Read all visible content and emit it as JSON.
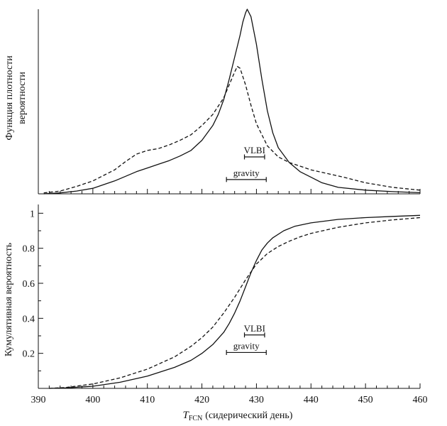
{
  "colors": {
    "ink": "#111111",
    "background": "#ffffff"
  },
  "chart_data": [
    {
      "type": "line",
      "panel": "top",
      "title": "",
      "xlabel": "",
      "ylabel_lines": [
        "Функция плотности",
        "вероятности"
      ],
      "xlim": [
        390,
        460
      ],
      "ylim": [
        0,
        1.0
      ],
      "y_ticks_visible": false,
      "series": [
        {
          "style": "solid",
          "x": [
            391,
            394,
            397,
            400,
            402,
            404,
            406,
            408,
            410,
            412,
            414,
            416,
            418,
            420,
            422,
            423,
            424,
            425,
            426,
            427,
            427.5,
            428,
            428.3,
            429,
            430,
            431,
            432,
            433,
            434,
            436,
            438,
            440,
            442,
            445,
            450,
            455,
            460
          ],
          "y": [
            0.0,
            0.005,
            0.015,
            0.03,
            0.05,
            0.07,
            0.095,
            0.12,
            0.14,
            0.16,
            0.18,
            0.205,
            0.235,
            0.29,
            0.37,
            0.43,
            0.51,
            0.62,
            0.74,
            0.86,
            0.93,
            0.98,
            1.0,
            0.96,
            0.81,
            0.62,
            0.45,
            0.33,
            0.25,
            0.17,
            0.12,
            0.09,
            0.06,
            0.035,
            0.02,
            0.012,
            0.006
          ]
        },
        {
          "style": "dashed",
          "x": [
            391,
            394,
            397,
            400,
            402,
            404,
            406,
            408,
            410,
            412,
            414,
            416,
            418,
            420,
            422,
            424,
            425,
            426,
            426.5,
            427,
            428,
            429,
            430,
            432,
            434,
            436,
            438,
            440,
            443,
            446,
            450,
            455,
            460
          ],
          "y": [
            0.005,
            0.015,
            0.04,
            0.07,
            0.1,
            0.13,
            0.175,
            0.215,
            0.235,
            0.245,
            0.265,
            0.29,
            0.32,
            0.37,
            0.43,
            0.52,
            0.59,
            0.66,
            0.69,
            0.68,
            0.59,
            0.48,
            0.38,
            0.26,
            0.2,
            0.17,
            0.15,
            0.13,
            0.11,
            0.09,
            0.06,
            0.035,
            0.02
          ]
        }
      ],
      "intervals": [
        {
          "label": "VLBI",
          "x": [
            427.8,
            431.5
          ],
          "y": 0.2
        },
        {
          "label": "gravity",
          "x": [
            424.5,
            431.8
          ],
          "y": 0.0775
        }
      ]
    },
    {
      "type": "line",
      "panel": "bottom",
      "title": "",
      "xlabel_main": "T",
      "xlabel_sub": "FCN",
      "xlabel_rest": "(сидерический день)",
      "ylabel": "Кумулятивная вероятность",
      "xlim": [
        390,
        460
      ],
      "ylim": [
        0,
        1.05
      ],
      "x_ticks": [
        390,
        400,
        410,
        420,
        430,
        440,
        450,
        460
      ],
      "y_ticks": [
        0.2,
        0.4,
        0.6,
        0.8,
        1
      ],
      "y_tick_labels": [
        "0.2",
        "0.4",
        "0.6",
        "0.8",
        "1"
      ],
      "series": [
        {
          "style": "solid",
          "x": [
            392,
            395,
            400,
            405,
            410,
            415,
            418,
            420,
            422,
            424,
            425,
            426,
            427,
            428,
            429,
            430,
            431,
            432,
            433,
            435,
            437,
            440,
            445,
            450,
            455,
            460
          ],
          "y": [
            0.0,
            0.003,
            0.012,
            0.035,
            0.07,
            0.12,
            0.16,
            0.2,
            0.25,
            0.32,
            0.37,
            0.43,
            0.5,
            0.58,
            0.66,
            0.73,
            0.79,
            0.83,
            0.86,
            0.9,
            0.925,
            0.945,
            0.965,
            0.975,
            0.982,
            0.988
          ]
        },
        {
          "style": "dashed",
          "x": [
            392,
            395,
            400,
            405,
            410,
            415,
            418,
            420,
            422,
            424,
            426,
            428,
            430,
            432,
            434,
            436,
            438,
            440,
            445,
            450,
            455,
            460
          ],
          "y": [
            0.0,
            0.005,
            0.025,
            0.06,
            0.11,
            0.18,
            0.24,
            0.29,
            0.35,
            0.43,
            0.52,
            0.62,
            0.71,
            0.77,
            0.81,
            0.84,
            0.865,
            0.885,
            0.92,
            0.945,
            0.962,
            0.975
          ]
        }
      ],
      "intervals": [
        {
          "label": "VLBI",
          "x": [
            427.8,
            431.5
          ],
          "y": 0.305
        },
        {
          "label": "gravity",
          "x": [
            424.5,
            431.8
          ],
          "y": 0.205
        }
      ]
    }
  ]
}
